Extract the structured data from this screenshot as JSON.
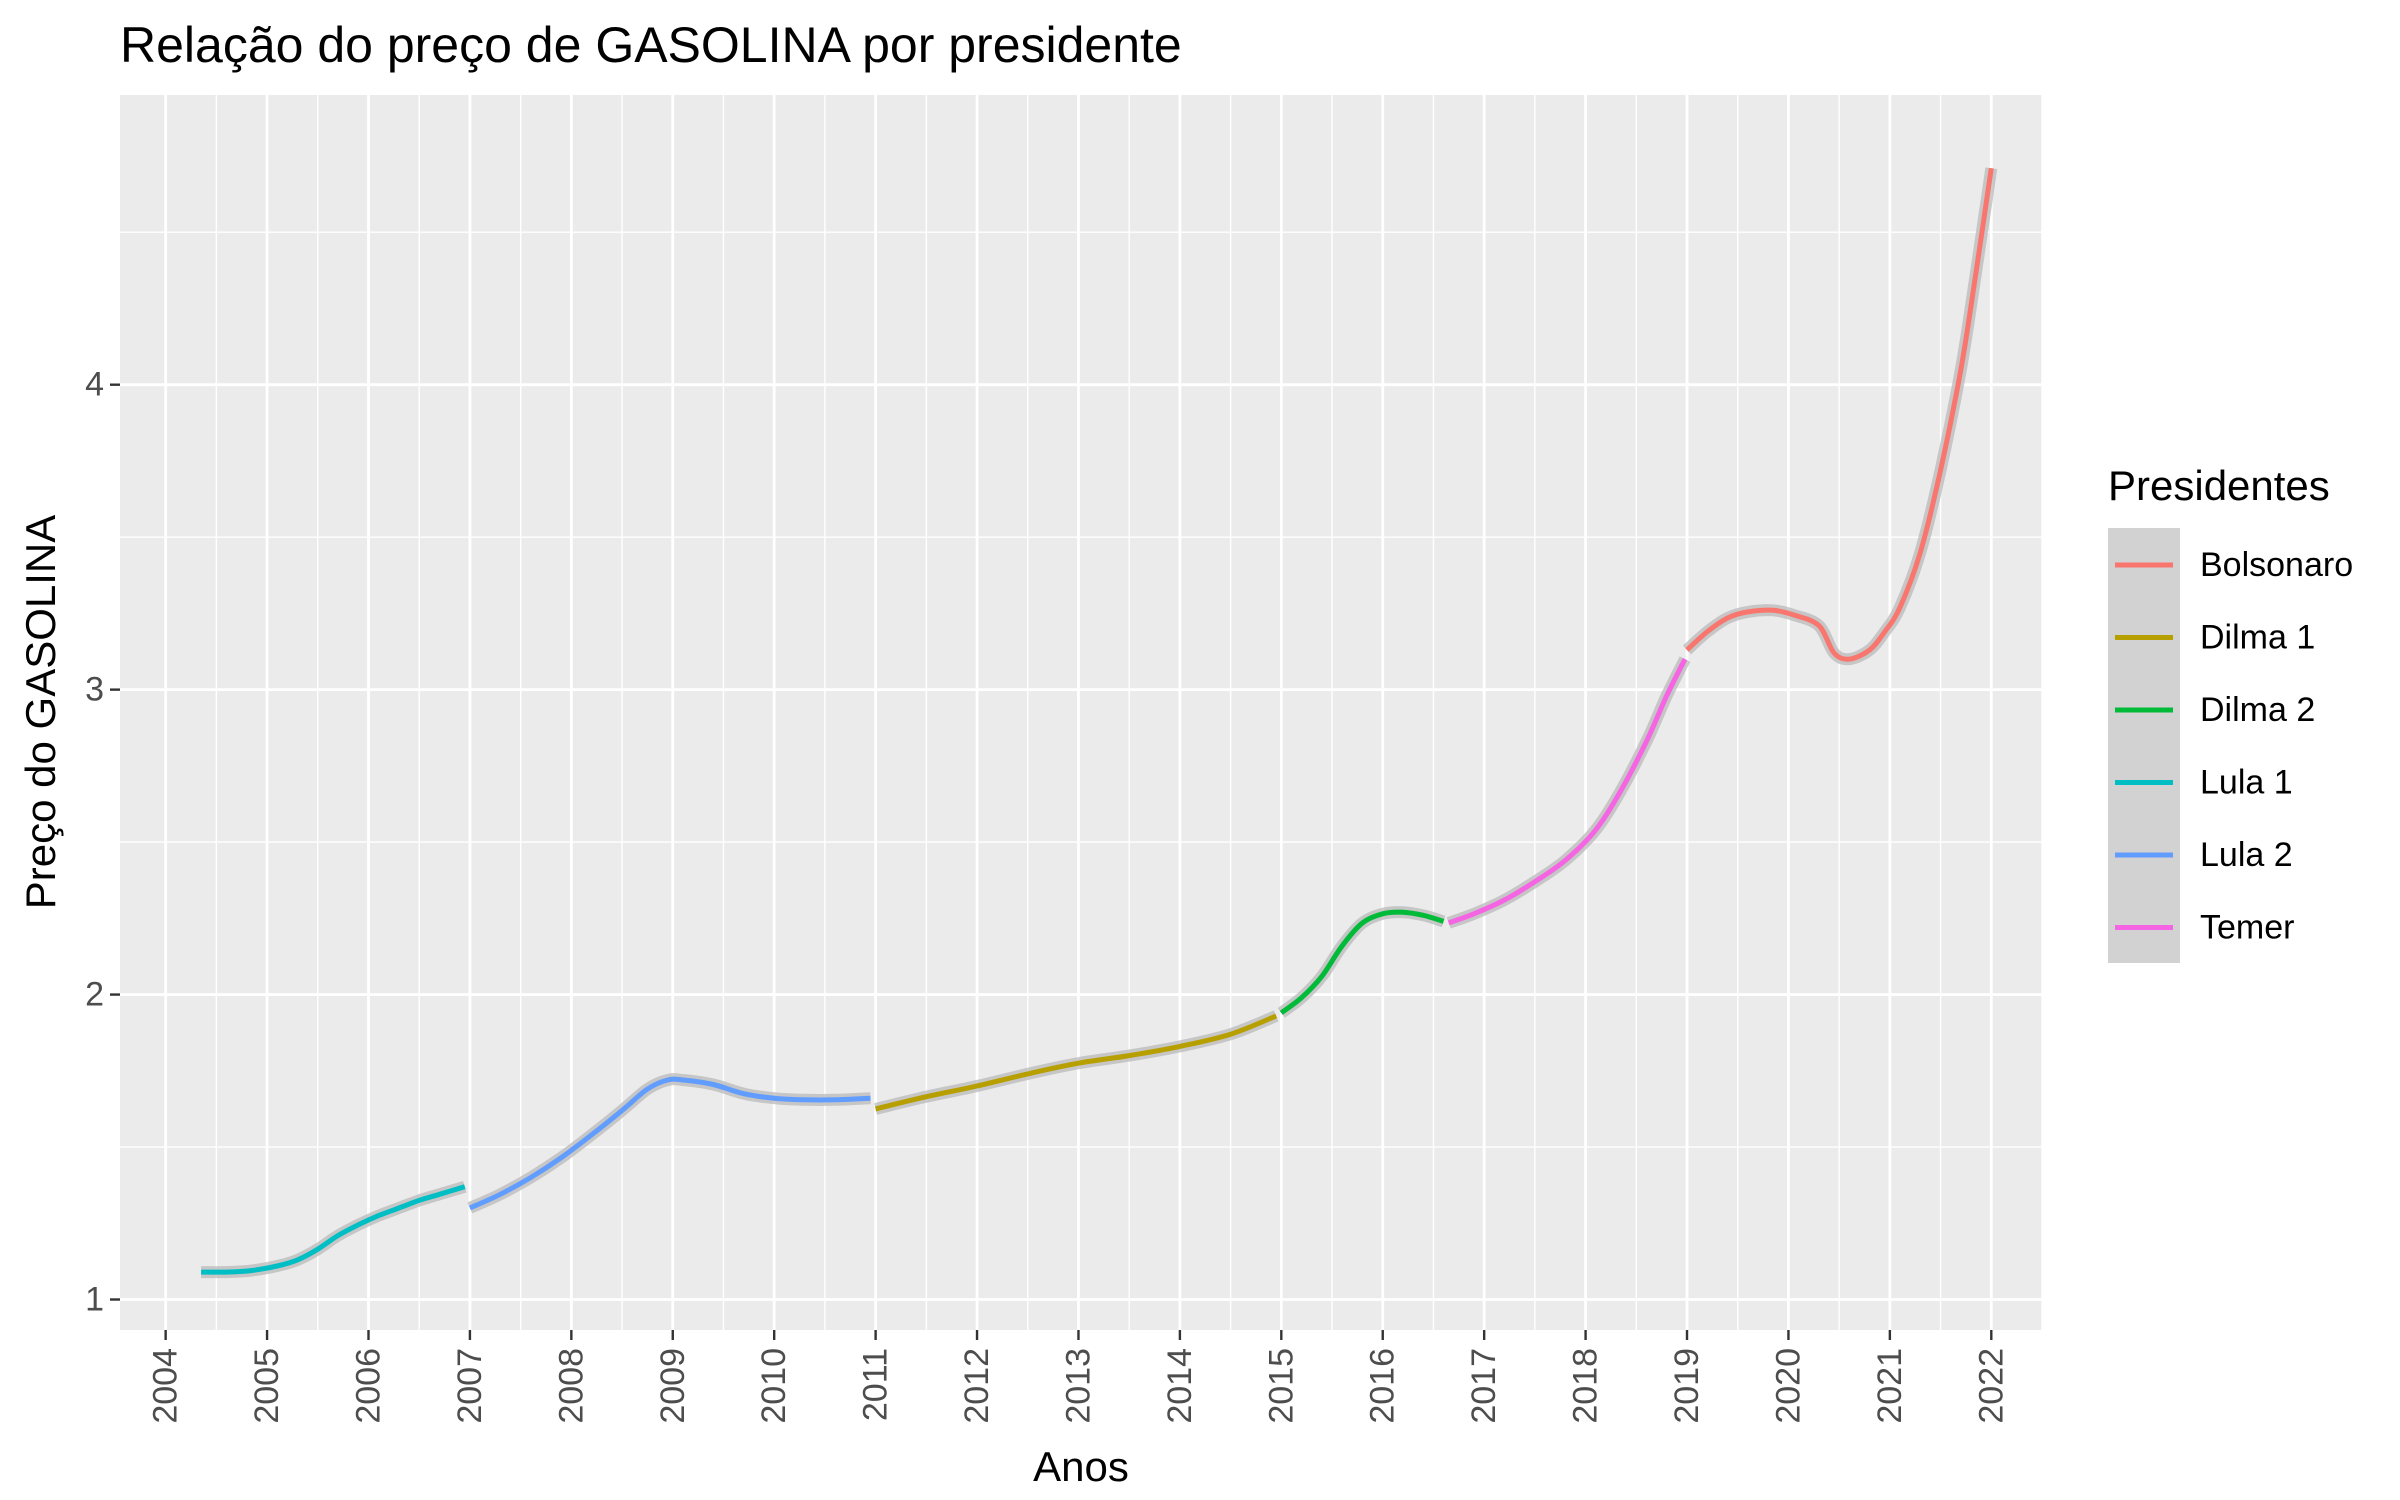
{
  "chart_data": {
    "type": "line",
    "title": "Relação do preço de GASOLINA por presidente",
    "xlabel": "Anos",
    "ylabel": "Preço do GASOLINA",
    "xlim": [
      2003.55,
      2022.5
    ],
    "ylim": [
      0.9,
      4.95
    ],
    "x_ticks": [
      2004,
      2005,
      2006,
      2007,
      2008,
      2009,
      2010,
      2011,
      2012,
      2013,
      2014,
      2015,
      2016,
      2017,
      2018,
      2019,
      2020,
      2021,
      2022
    ],
    "x_tick_labels": [
      "2004",
      "2005",
      "2006",
      "2007",
      "2008",
      "2009",
      "2010",
      "2011",
      "2012",
      "2013",
      "2014",
      "2015",
      "2016",
      "2017",
      "2018",
      "2019",
      "2020",
      "2021",
      "2022"
    ],
    "y_ticks": [
      1,
      2,
      3,
      4
    ],
    "y_tick_labels": [
      "1",
      "2",
      "3",
      "4"
    ],
    "grid": true,
    "legend": {
      "title": "Presidentes",
      "position": "right"
    },
    "series": [
      {
        "name": "Lula 1",
        "color": "#00bfc4",
        "x": [
          2004.35,
          2004.6,
          2004.85,
          2005.1,
          2005.3,
          2005.5,
          2005.7,
          2005.9,
          2006.1,
          2006.3,
          2006.5,
          2006.7,
          2006.95
        ],
        "y": [
          1.09,
          1.09,
          1.095,
          1.11,
          1.13,
          1.165,
          1.21,
          1.245,
          1.275,
          1.3,
          1.325,
          1.345,
          1.37
        ]
      },
      {
        "name": "Lula 2",
        "color": "#619cff",
        "x": [
          2007.0,
          2007.3,
          2007.6,
          2007.9,
          2008.2,
          2008.5,
          2008.75,
          2008.95,
          2009.1,
          2009.4,
          2009.7,
          2010.0,
          2010.3,
          2010.6,
          2010.95
        ],
        "y": [
          1.3,
          1.345,
          1.4,
          1.465,
          1.54,
          1.62,
          1.69,
          1.72,
          1.72,
          1.705,
          1.675,
          1.66,
          1.655,
          1.655,
          1.66
        ]
      },
      {
        "name": "Dilma 1",
        "color": "#b79f00",
        "x": [
          2011.0,
          2011.5,
          2012.0,
          2012.5,
          2013.0,
          2013.5,
          2014.0,
          2014.5,
          2014.95
        ],
        "y": [
          1.625,
          1.665,
          1.7,
          1.74,
          1.775,
          1.8,
          1.83,
          1.87,
          1.93
        ]
      },
      {
        "name": "Dilma 2",
        "color": "#00ba38",
        "x": [
          2015.0,
          2015.2,
          2015.4,
          2015.6,
          2015.8,
          2016.0,
          2016.2,
          2016.4,
          2016.6
        ],
        "y": [
          1.94,
          1.99,
          2.06,
          2.16,
          2.235,
          2.265,
          2.27,
          2.26,
          2.24
        ]
      },
      {
        "name": "Temer",
        "color": "#f564e3",
        "x": [
          2016.65,
          2016.9,
          2017.2,
          2017.5,
          2017.8,
          2018.1,
          2018.35,
          2018.6,
          2018.8,
          2018.98
        ],
        "y": [
          2.235,
          2.265,
          2.31,
          2.37,
          2.44,
          2.54,
          2.67,
          2.83,
          2.98,
          3.1
        ]
      },
      {
        "name": "Bolsonaro",
        "color": "#f8766d",
        "x": [
          2019.0,
          2019.2,
          2019.4,
          2019.6,
          2019.85,
          2020.05,
          2020.3,
          2020.45,
          2020.6,
          2020.8,
          2020.95,
          2021.1,
          2021.3,
          2021.5,
          2021.7,
          2021.85,
          2022.0
        ],
        "y": [
          3.13,
          3.19,
          3.235,
          3.255,
          3.26,
          3.245,
          3.21,
          3.12,
          3.1,
          3.13,
          3.19,
          3.27,
          3.45,
          3.72,
          4.05,
          4.37,
          4.71
        ]
      }
    ],
    "legend_order": [
      "Bolsonaro",
      "Dilma 1",
      "Dilma 2",
      "Lula 1",
      "Lula 2",
      "Temer"
    ]
  }
}
